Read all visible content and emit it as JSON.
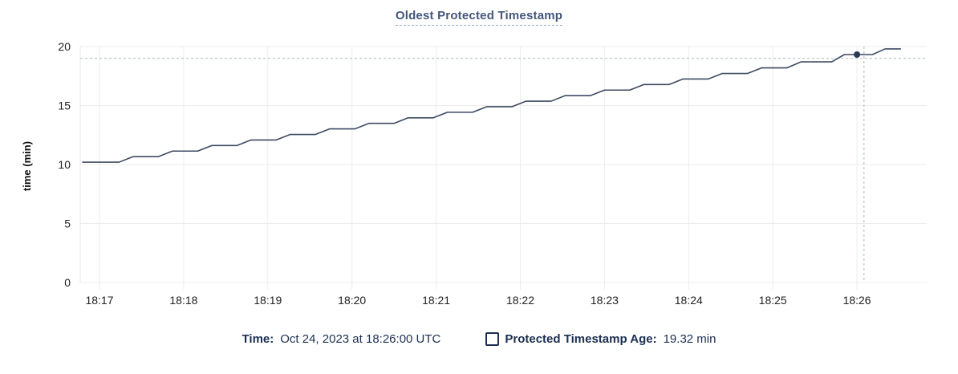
{
  "chart_data": {
    "type": "line",
    "title": "Oldest Protected Timestamp",
    "xlabel": "",
    "ylabel": "time (min)",
    "grid": true,
    "legend_position": "bottom",
    "y_axis": {
      "min": 0,
      "max": 20,
      "ticks": [
        0,
        5,
        10,
        15,
        20
      ]
    },
    "x_axis": {
      "ticks": [
        {
          "label": "18:17",
          "t": 0
        },
        {
          "label": "18:18",
          "t": 60
        },
        {
          "label": "18:19",
          "t": 120
        },
        {
          "label": "18:20",
          "t": 180
        },
        {
          "label": "18:21",
          "t": 240
        },
        {
          "label": "18:22",
          "t": 300
        },
        {
          "label": "18:23",
          "t": 360
        },
        {
          "label": "18:24",
          "t": 420
        },
        {
          "label": "18:25",
          "t": 480
        },
        {
          "label": "18:26",
          "t": 540
        }
      ]
    },
    "series": [
      {
        "name": "Protected Timestamp Age",
        "unit": "min",
        "points": [
          [
            -12,
            10.2
          ],
          [
            14,
            10.2
          ],
          [
            24,
            10.67
          ],
          [
            42,
            10.67
          ],
          [
            52,
            11.14
          ],
          [
            70,
            11.14
          ],
          [
            80,
            11.61
          ],
          [
            98,
            11.61
          ],
          [
            108,
            12.08
          ],
          [
            126,
            12.08
          ],
          [
            136,
            12.55
          ],
          [
            154,
            12.55
          ],
          [
            164,
            13.02
          ],
          [
            182,
            13.02
          ],
          [
            192,
            13.49
          ],
          [
            210,
            13.49
          ],
          [
            220,
            13.96
          ],
          [
            238,
            13.96
          ],
          [
            248,
            14.43
          ],
          [
            266,
            14.43
          ],
          [
            276,
            14.9
          ],
          [
            294,
            14.9
          ],
          [
            304,
            15.37
          ],
          [
            322,
            15.37
          ],
          [
            332,
            15.84
          ],
          [
            350,
            15.84
          ],
          [
            360,
            16.31
          ],
          [
            378,
            16.31
          ],
          [
            388,
            16.78
          ],
          [
            406,
            16.78
          ],
          [
            416,
            17.25
          ],
          [
            434,
            17.25
          ],
          [
            444,
            17.72
          ],
          [
            462,
            17.72
          ],
          [
            472,
            18.19
          ],
          [
            490,
            18.19
          ],
          [
            500,
            18.7
          ],
          [
            522,
            18.7
          ],
          [
            531,
            19.32
          ],
          [
            551,
            19.32
          ],
          [
            560,
            19.8
          ],
          [
            571,
            19.8
          ]
        ]
      }
    ],
    "crosshair": {
      "hover_time_t": 545,
      "dot_t": 540,
      "dot_value": 19.32,
      "hline_value": 19.0
    },
    "colors": {
      "line": "#3e4a61",
      "dot": "#2b3a55",
      "grid": "#ececec",
      "axis_line": "#e7e7e7",
      "crosshair": "#a7b9c2",
      "tick_text": "#222222",
      "title": "#44567a",
      "footer_text": "#1b2f52"
    }
  },
  "footer": {
    "time_label": "Time:",
    "time_value": "Oct 24, 2023 at 18:26:00 UTC",
    "series_label": "Protected Timestamp Age:",
    "series_value": "19.32 min"
  }
}
